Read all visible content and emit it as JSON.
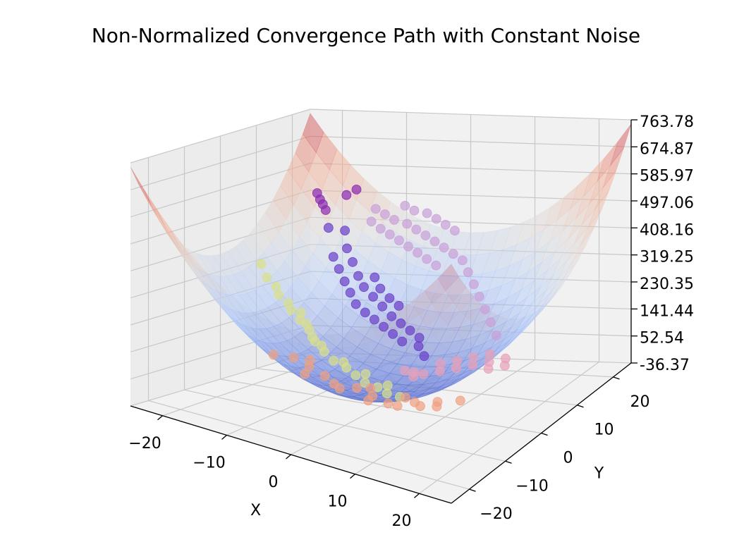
{
  "chart_data": {
    "type": "scatter",
    "subtype": "3d-surface-with-scatter",
    "title": "Non-Normalized Convergence Path with Constant Noise",
    "xlabel": "X",
    "ylabel": "Y",
    "zlabel": "",
    "xlim": [
      -25,
      25
    ],
    "ylim": [
      -25,
      25
    ],
    "zlim": [
      -36.37,
      763.78
    ],
    "x_ticks": [
      "−20",
      "−10",
      "0",
      "10",
      "20"
    ],
    "y_ticks": [
      "−20",
      "−10",
      "0",
      "10",
      "20"
    ],
    "z_ticks": [
      "-36.37",
      "52.54",
      "141.44",
      "230.35",
      "319.25",
      "408.16",
      "497.06",
      "585.97",
      "674.87",
      "763.78"
    ],
    "grid": true,
    "surface": {
      "function": "z = 0.6 * (x^2 + y^2)",
      "colormap": "coolwarm",
      "alpha": 0.5
    },
    "series": [
      {
        "color": "#d9e08a",
        "points": [
          [
            -22,
            6,
            330
          ],
          [
            -20,
            4,
            300
          ],
          [
            -18,
            3,
            280
          ],
          [
            -17,
            2,
            260
          ],
          [
            -15,
            1,
            245
          ],
          [
            -14,
            0,
            230
          ],
          [
            -12,
            -1,
            210
          ],
          [
            -10,
            -2,
            190
          ],
          [
            -8,
            -4,
            170
          ],
          [
            -6,
            -5,
            150
          ],
          [
            -4,
            -6,
            135
          ],
          [
            -2,
            -6,
            120
          ],
          [
            0,
            -7,
            110
          ],
          [
            2,
            -8,
            100
          ],
          [
            4,
            -8,
            95
          ],
          [
            6,
            -9,
            90
          ],
          [
            8,
            -9,
            88
          ],
          [
            -9,
            -3,
            175
          ],
          [
            -7,
            -4,
            160
          ],
          [
            -3,
            -5,
            128
          ],
          [
            1,
            -6,
            112
          ],
          [
            5,
            -7,
            98
          ],
          [
            -13,
            1,
            220
          ],
          [
            -11,
            -1,
            200
          ]
        ]
      },
      {
        "color": "#f0a080",
        "points": [
          [
            -8,
            -10,
            150
          ],
          [
            -5,
            -11,
            140
          ],
          [
            -2,
            -12,
            130
          ],
          [
            0,
            -13,
            120
          ],
          [
            3,
            -12,
            115
          ],
          [
            6,
            -13,
            110
          ],
          [
            9,
            -14,
            108
          ],
          [
            12,
            -12,
            112
          ],
          [
            15,
            -11,
            120
          ],
          [
            18,
            -10,
            130
          ],
          [
            -10,
            -12,
            160
          ],
          [
            -4,
            -14,
            138
          ],
          [
            2,
            -15,
            128
          ],
          [
            7,
            -16,
            122
          ],
          [
            11,
            -15,
            118
          ],
          [
            14,
            -14,
            125
          ],
          [
            -6,
            -9,
            145
          ],
          [
            4,
            -10,
            105
          ],
          [
            10,
            -11,
            110
          ],
          [
            16,
            -13,
            126
          ]
        ]
      },
      {
        "color": "#6a3ec9",
        "points": [
          [
            -16,
            14,
            430
          ],
          [
            -14,
            15,
            420
          ],
          [
            -12,
            12,
            380
          ],
          [
            -10,
            10,
            350
          ],
          [
            -8,
            8,
            320
          ],
          [
            -6,
            6,
            300
          ],
          [
            -4,
            5,
            280
          ],
          [
            -2,
            4,
            260
          ],
          [
            0,
            3,
            240
          ],
          [
            2,
            2,
            230
          ],
          [
            4,
            1,
            220
          ],
          [
            6,
            0,
            210
          ],
          [
            -9,
            6,
            310
          ],
          [
            -7,
            4,
            290
          ],
          [
            -5,
            2,
            270
          ],
          [
            -3,
            1,
            255
          ],
          [
            -1,
            0,
            245
          ],
          [
            1,
            -1,
            235
          ],
          [
            3,
            -2,
            225
          ],
          [
            5,
            -3,
            215
          ],
          [
            -11,
            8,
            335
          ],
          [
            -13,
            10,
            360
          ],
          [
            7,
            -2,
            200
          ],
          [
            9,
            -4,
            190
          ],
          [
            -6,
            9,
            315
          ],
          [
            -4,
            7,
            295
          ],
          [
            -2,
            6,
            275
          ],
          [
            0,
            5,
            262
          ]
        ]
      },
      {
        "color": "#c9a0d8",
        "points": [
          [
            -12,
            20,
            470
          ],
          [
            -10,
            19,
            460
          ],
          [
            -8,
            18,
            450
          ],
          [
            -6,
            18,
            440
          ],
          [
            -4,
            17,
            430
          ],
          [
            -2,
            16,
            420
          ],
          [
            0,
            15,
            410
          ],
          [
            2,
            14,
            400
          ],
          [
            4,
            13,
            390
          ],
          [
            -9,
            16,
            430
          ],
          [
            -7,
            15,
            420
          ],
          [
            -5,
            14,
            410
          ],
          [
            -3,
            13,
            400
          ],
          [
            -1,
            12,
            390
          ],
          [
            1,
            11,
            380
          ],
          [
            3,
            10,
            370
          ],
          [
            -11,
            17,
            445
          ],
          [
            6,
            12,
            380
          ],
          [
            8,
            10,
            360
          ],
          [
            10,
            8,
            340
          ],
          [
            12,
            6,
            320
          ],
          [
            14,
            4,
            300
          ],
          [
            16,
            2,
            280
          ],
          [
            18,
            0,
            260
          ],
          [
            -8,
            21,
            480
          ],
          [
            -6,
            20,
            472
          ],
          [
            -4,
            20,
            466
          ],
          [
            -2,
            19,
            456
          ],
          [
            0,
            18,
            446
          ],
          [
            2,
            17,
            436
          ]
        ]
      },
      {
        "color": "#e8a0b8",
        "points": [
          [
            10,
            -6,
            150
          ],
          [
            12,
            -5,
            160
          ],
          [
            14,
            -4,
            170
          ],
          [
            16,
            -3,
            180
          ],
          [
            18,
            -2,
            190
          ],
          [
            20,
            -1,
            200
          ],
          [
            8,
            -5,
            140
          ],
          [
            6,
            -4,
            130
          ],
          [
            11,
            -3,
            165
          ],
          [
            13,
            -2,
            175
          ],
          [
            15,
            -1,
            185
          ],
          [
            17,
            0,
            195
          ],
          [
            9,
            -7,
            145
          ],
          [
            19,
            -4,
            188
          ],
          [
            21,
            -3,
            198
          ]
        ]
      },
      {
        "color": "#8a2ab0",
        "points": [
          [
            -20,
            18,
            520
          ],
          [
            -19,
            17,
            505
          ],
          [
            -18,
            16,
            495
          ],
          [
            -17,
            15,
            482
          ],
          [
            -15,
            20,
            530
          ],
          [
            -16,
            19,
            515
          ]
        ]
      }
    ]
  }
}
